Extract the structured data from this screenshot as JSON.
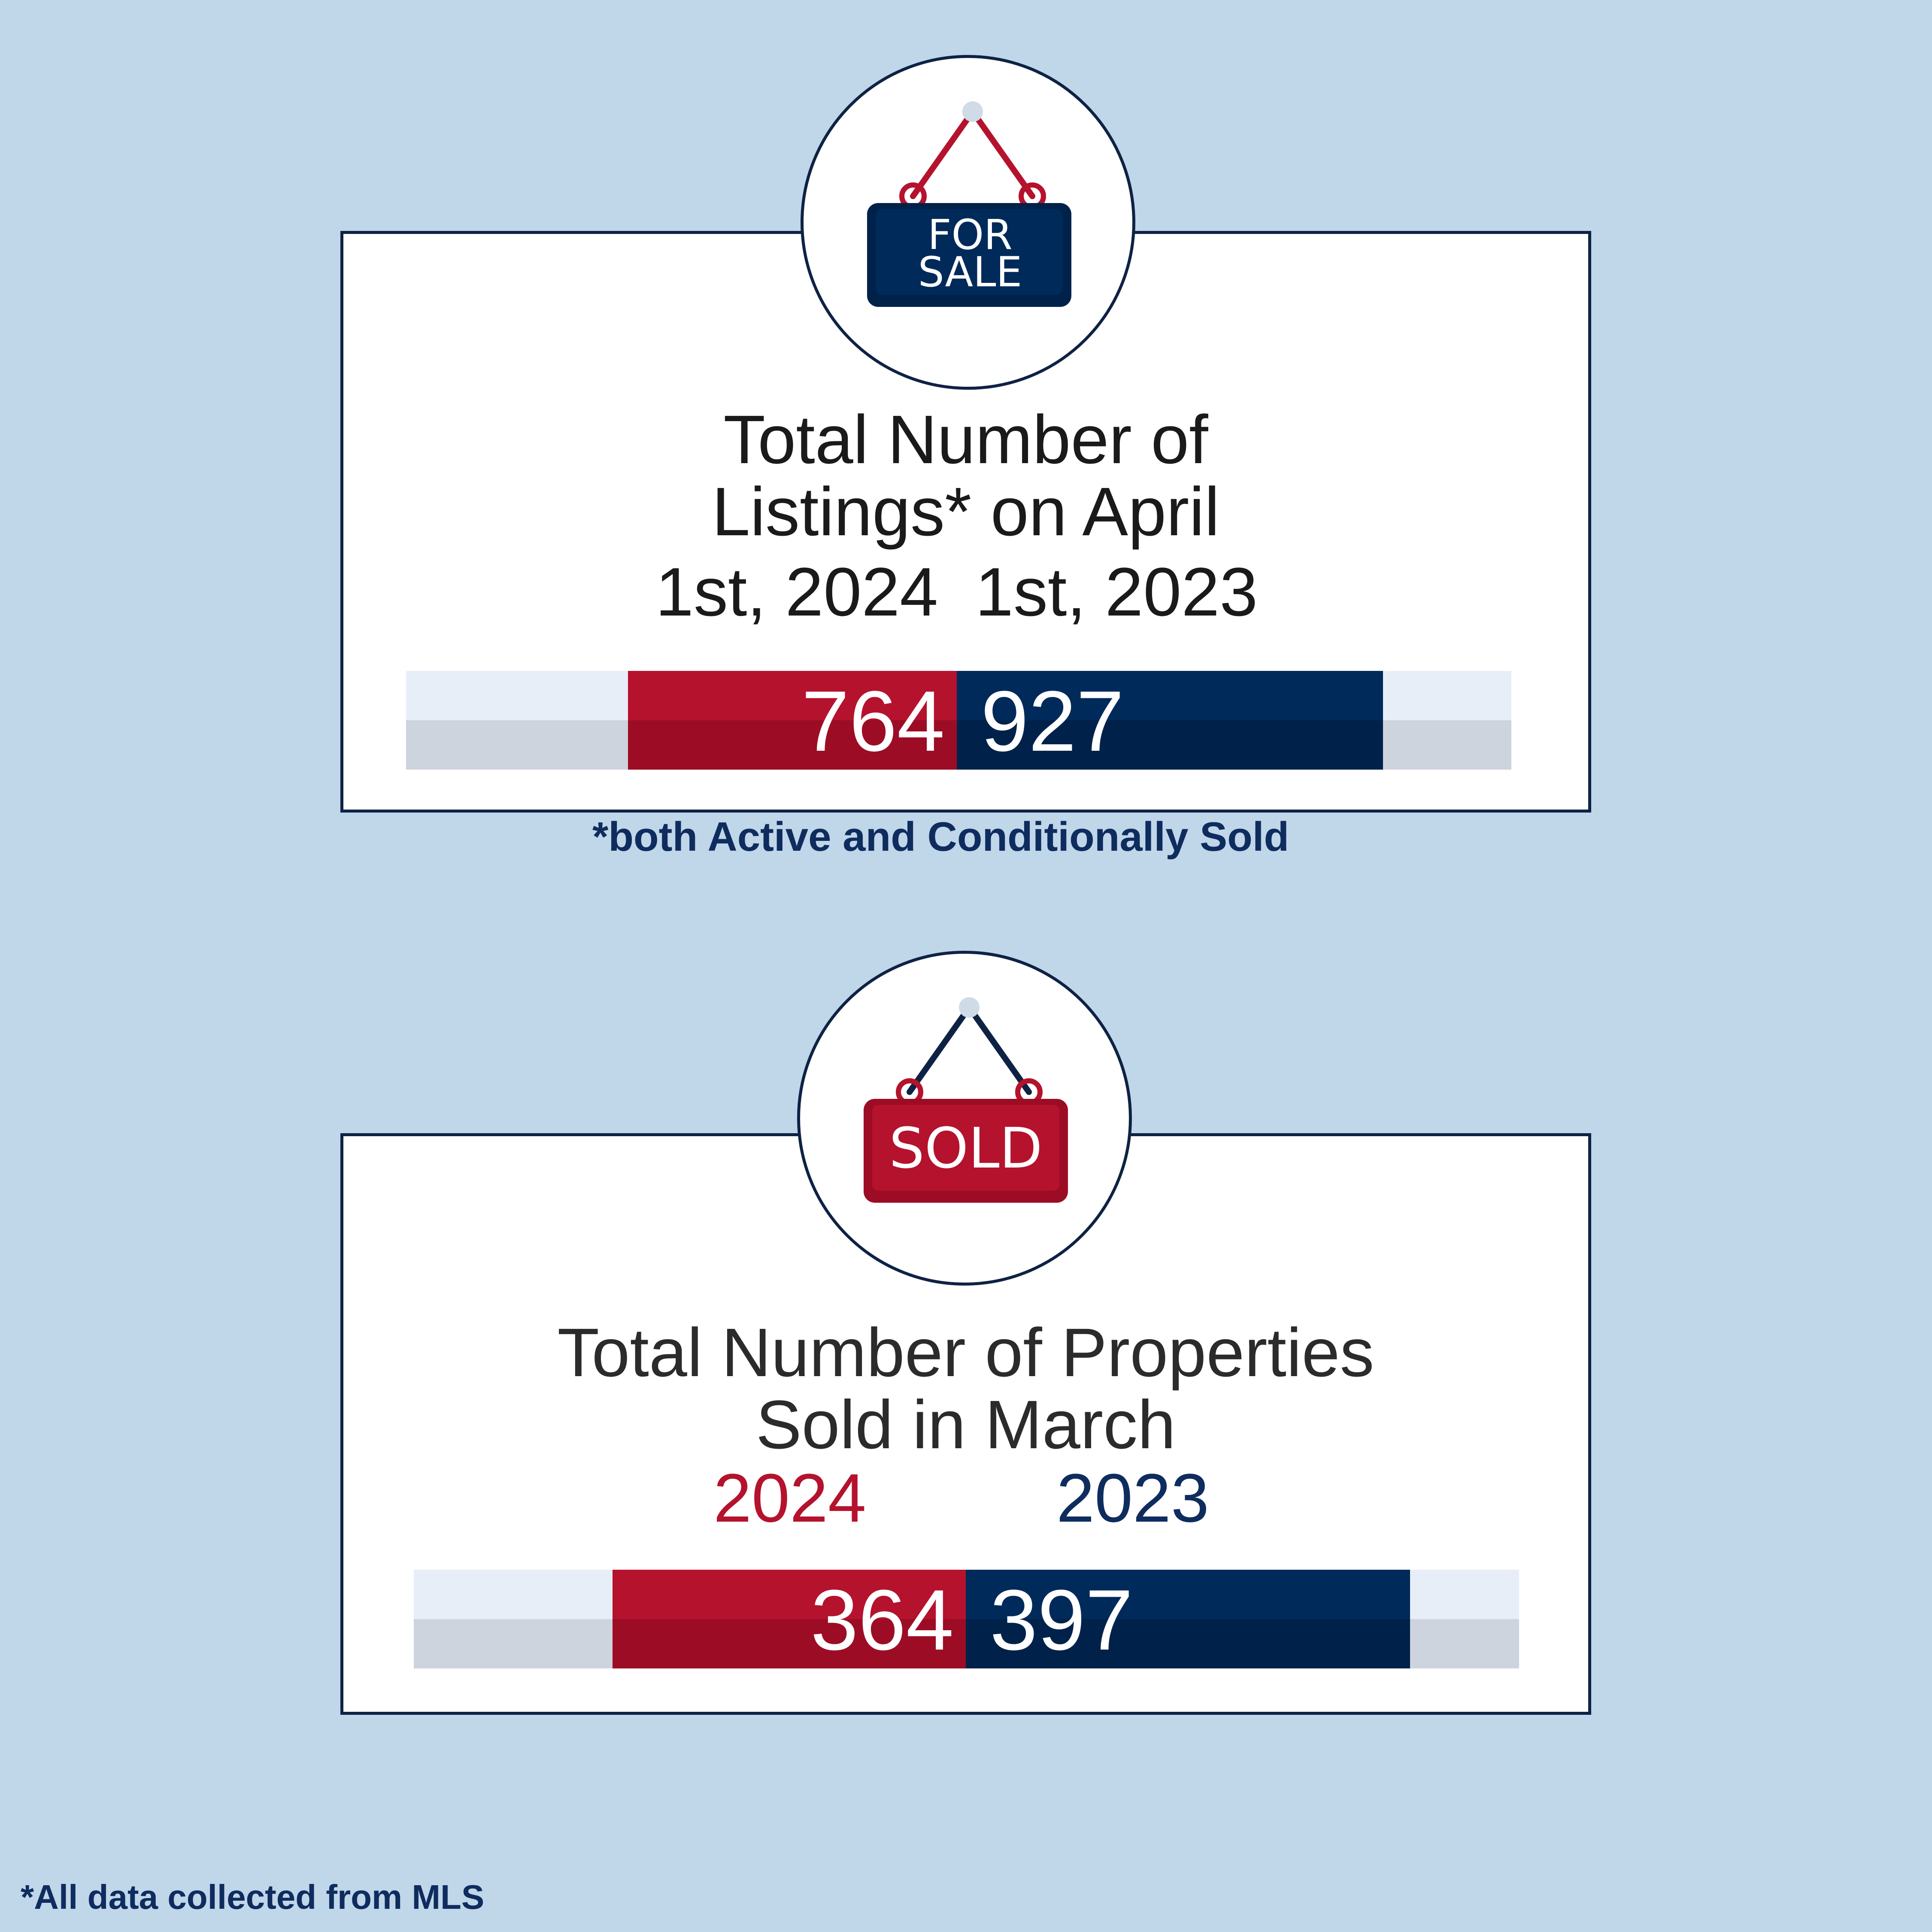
{
  "listings": {
    "sign_text_line1": "FOR",
    "sign_text_line2": "SALE",
    "title_line1": "Total Number of",
    "title_line2": "Listings* on April",
    "year_2024": "1st, 2024",
    "year_2023": "1st, 2023",
    "value_2024": "764",
    "value_2023": "927",
    "footnote": "*both Active and Conditionally Sold"
  },
  "sold": {
    "sign_text": "SOLD",
    "title_line1": "Total Number of Properties",
    "title_line2": "Sold in March",
    "year_2024": "2024",
    "year_2023": "2023",
    "value_2024": "364",
    "value_2023": "397"
  },
  "footer_note": "*All data collected from MLS",
  "colors": {
    "background": "#c0d6e9",
    "navy": "#002a5a",
    "red": "#b5122d",
    "border": "#0e2244"
  },
  "icons": [
    "for-sale-sign-icon",
    "sold-sign-icon"
  ]
}
